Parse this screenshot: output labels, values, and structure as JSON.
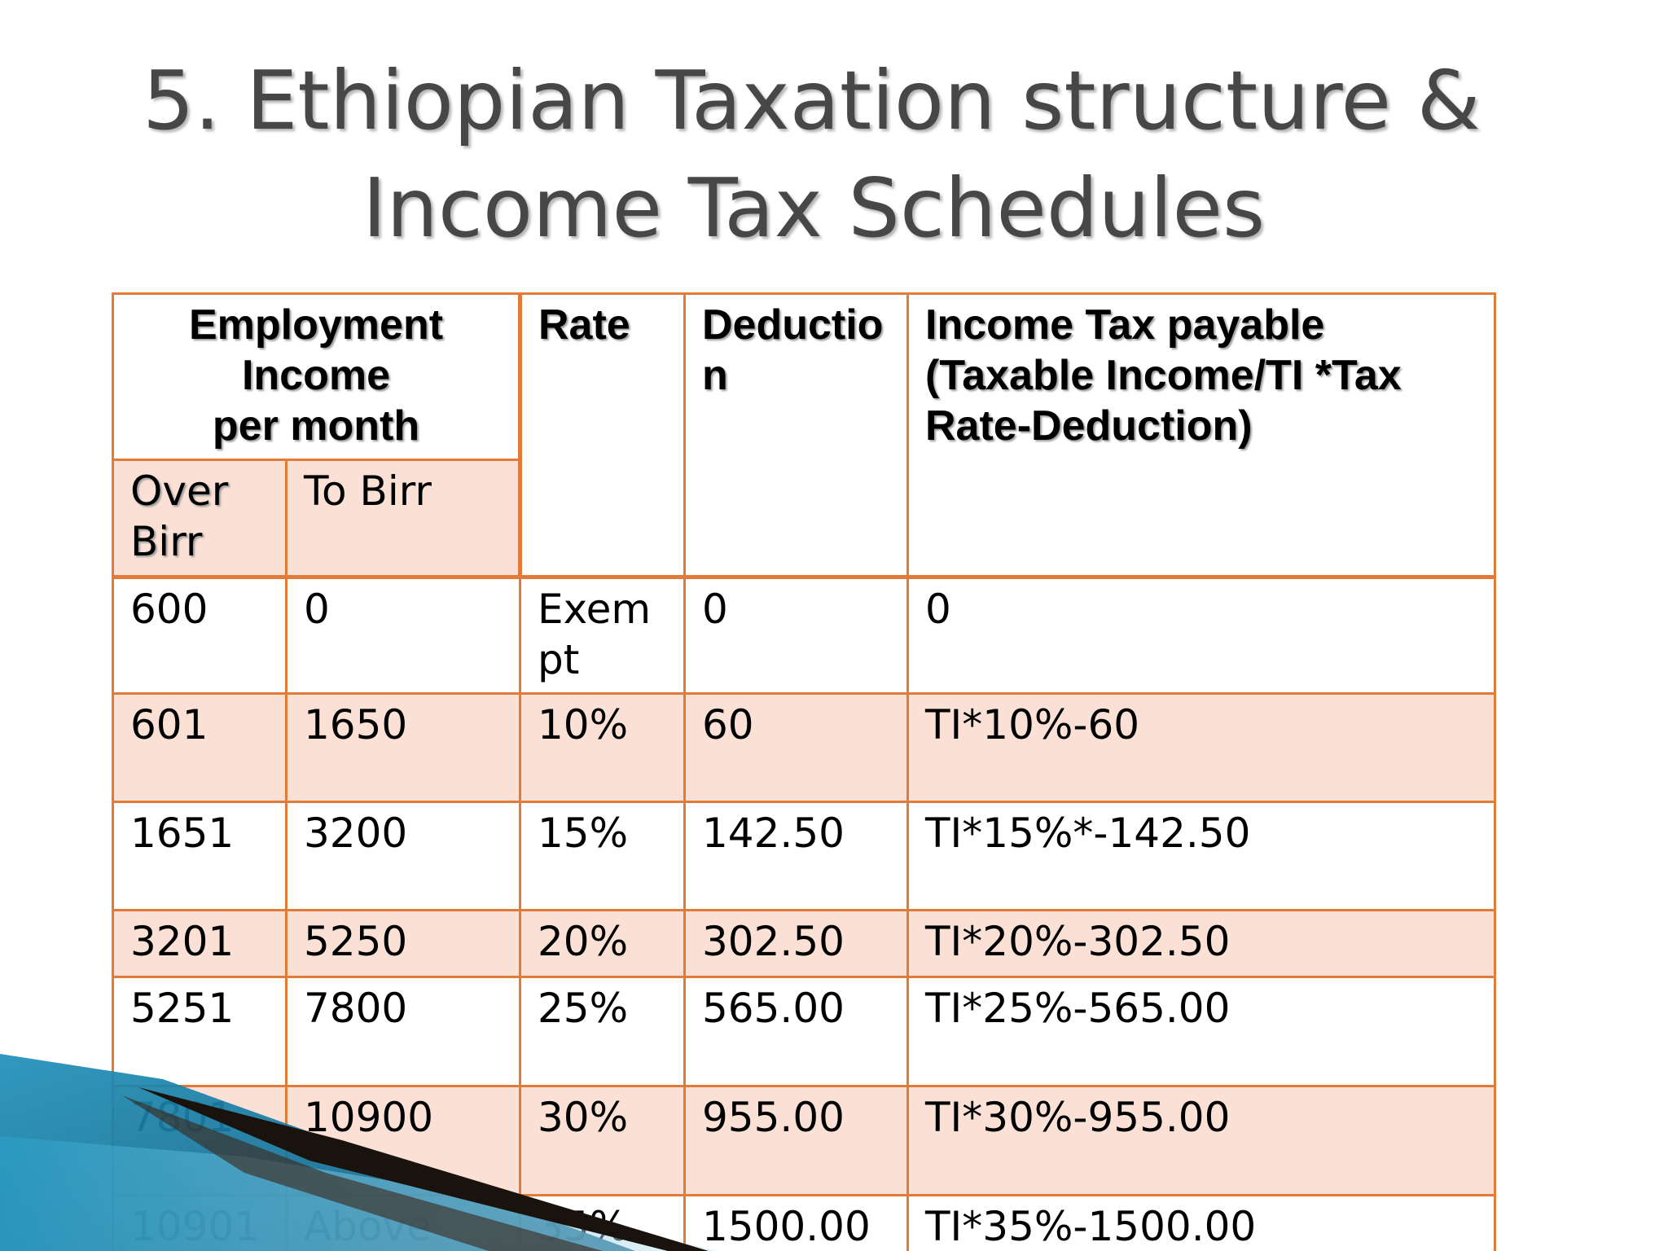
{
  "title": {
    "line1": "5.  Ethiopian Taxation structure &",
    "line2": "Income Tax  Schedules"
  },
  "table": {
    "headers": {
      "employment_income": [
        "Employment",
        "Income",
        "per month"
      ],
      "rate": "Rate",
      "deduction": [
        "Deductio",
        "n"
      ],
      "income_tax": [
        "Income Tax payable",
        "(Taxable Income/TI *Tax",
        "Rate-Deduction)"
      ],
      "over": [
        "Over",
        "Birr"
      ],
      "to": "To Birr"
    },
    "rows": [
      {
        "over": "600",
        "to": "0",
        "rate": "Exempt",
        "deduction": "0",
        "tax": "0"
      },
      {
        "over": "601",
        "to": "1650",
        "rate": "10%",
        "deduction": "60",
        "tax": "TI*10%-60"
      },
      {
        "over": "1651",
        "to": "3200",
        "rate": "15%",
        "deduction": "142.50",
        "tax": "TI*15%*-142.50"
      },
      {
        "over": "3201",
        "to": "5250",
        "rate": "20%",
        "deduction": "302.50",
        "tax": "TI*20%-302.50"
      },
      {
        "over": "5251",
        "to": "7800",
        "rate": "25%",
        "deduction": "565.00",
        "tax": "TI*25%-565.00"
      },
      {
        "over": "7801",
        "to": "10900",
        "rate": "30%",
        "deduction": "955.00",
        "tax": "TI*30%-955.00"
      },
      {
        "over": "10901",
        "to": "Above",
        "rate": "35%",
        "deduction": "1500.00",
        "tax": "TI*35%-1500.00"
      }
    ]
  },
  "colors": {
    "border": "#e07b39",
    "shade": "#fbe1d5",
    "title": "#474747"
  }
}
